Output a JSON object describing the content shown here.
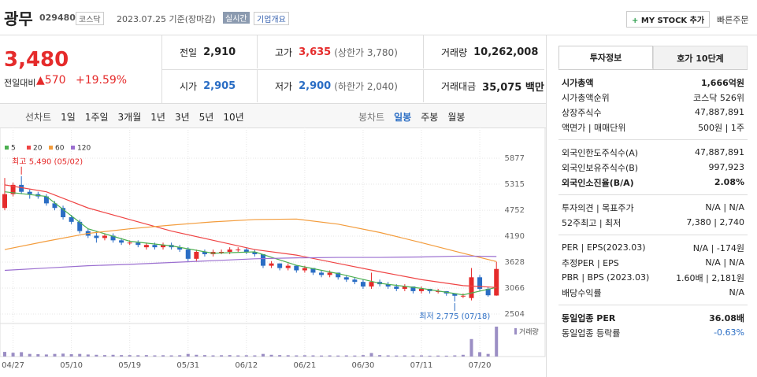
{
  "header": {
    "name": "광무",
    "code": "029480",
    "market": "코스닥",
    "date": "2023.07.25 기준(장마감)",
    "realtime": "실시간",
    "overview": "기업개요",
    "mystock": "MY STOCK 추가",
    "quick_order": "빠른주문"
  },
  "price": {
    "current": "3,480",
    "change_label": "전일대비",
    "change": "570",
    "rate": "+19.59%"
  },
  "quotes": [
    [
      {
        "label": "전일",
        "value": "2,910"
      },
      {
        "label": "고가",
        "value": "3,635",
        "note": "(상한가 3,780)"
      },
      {
        "label": "거래량",
        "value": "10,262,008"
      }
    ],
    [
      {
        "label": "시가",
        "value": "2,905"
      },
      {
        "label": "저가",
        "value": "2,900",
        "note": "(하한가 2,040)"
      },
      {
        "label": "거래대금",
        "value": "35,075 백만"
      }
    ]
  ],
  "toolbar": {
    "line_chart": "선차트",
    "periods": [
      "1일",
      "1주일",
      "3개월",
      "1년",
      "3년",
      "5년",
      "10년"
    ],
    "candle_chart": "봉차트",
    "candle_periods": [
      "일봉",
      "주봉",
      "월봉"
    ]
  },
  "chart_data": {
    "type": "candlestick",
    "categories": [
      null,
      "04/27",
      null,
      null,
      null,
      null,
      null,
      null,
      "05/10",
      null,
      null,
      null,
      null,
      null,
      null,
      "05/19",
      null,
      null,
      null,
      null,
      null,
      null,
      "05/31",
      null,
      null,
      null,
      null,
      null,
      null,
      "06/12",
      null,
      null,
      null,
      null,
      null,
      null,
      "06/21",
      null,
      null,
      null,
      null,
      null,
      null,
      "06/30",
      null,
      null,
      null,
      null,
      null,
      null,
      "07/11",
      null,
      null,
      null,
      null,
      null,
      null,
      "07/20",
      null,
      null
    ],
    "candles": [
      [
        4800,
        5450,
        4750,
        5100
      ],
      [
        5100,
        5350,
        5050,
        5300
      ],
      [
        5300,
        5490,
        5100,
        5150
      ],
      [
        5150,
        5200,
        5000,
        5100
      ],
      [
        5100,
        5150,
        5000,
        5050
      ],
      [
        5050,
        5100,
        4850,
        4900
      ],
      [
        4900,
        4950,
        4750,
        4800
      ],
      [
        4800,
        4850,
        4550,
        4600
      ],
      [
        4600,
        4650,
        4450,
        4500
      ],
      [
        4500,
        4550,
        4250,
        4300
      ],
      [
        4300,
        4350,
        4150,
        4200
      ],
      [
        4200,
        4300,
        4050,
        4150
      ],
      [
        4150,
        4250,
        4100,
        4200
      ],
      [
        4200,
        4250,
        4050,
        4100
      ],
      [
        4100,
        4150,
        4000,
        4050
      ],
      [
        4050,
        4100,
        4000,
        4050
      ],
      [
        4050,
        4100,
        3950,
        4000
      ],
      [
        3950,
        4050,
        3900,
        4000
      ],
      [
        4000,
        4050,
        3900,
        3950
      ],
      [
        3950,
        4050,
        3900,
        4000
      ],
      [
        4000,
        4050,
        3900,
        3950
      ],
      [
        3950,
        4000,
        3850,
        3900
      ],
      [
        3900,
        3950,
        3650,
        3700
      ],
      [
        3700,
        3900,
        3650,
        3850
      ],
      [
        3850,
        3900,
        3750,
        3800
      ],
      [
        3800,
        3900,
        3750,
        3850
      ],
      [
        3850,
        3900,
        3800,
        3850
      ],
      [
        3850,
        3950,
        3800,
        3900
      ],
      [
        3900,
        3950,
        3850,
        3900
      ],
      [
        3900,
        3950,
        3800,
        3850
      ],
      [
        3850,
        3900,
        3750,
        3800
      ],
      [
        3800,
        3800,
        3500,
        3550
      ],
      [
        3550,
        3650,
        3500,
        3600
      ],
      [
        3600,
        3600,
        3450,
        3500
      ],
      [
        3500,
        3600,
        3450,
        3550
      ],
      [
        3550,
        3550,
        3400,
        3450
      ],
      [
        3450,
        3550,
        3400,
        3500
      ],
      [
        3500,
        3500,
        3350,
        3400
      ],
      [
        3400,
        3450,
        3300,
        3350
      ],
      [
        3350,
        3450,
        3300,
        3400
      ],
      [
        3400,
        3400,
        3250,
        3300
      ],
      [
        3300,
        3350,
        3200,
        3250
      ],
      [
        3250,
        3300,
        3150,
        3200
      ],
      [
        3200,
        3250,
        3050,
        3100
      ],
      [
        3100,
        3400,
        3050,
        3200
      ],
      [
        3200,
        3250,
        3100,
        3150
      ],
      [
        3150,
        3200,
        3050,
        3100
      ],
      [
        3100,
        3150,
        3000,
        3050
      ],
      [
        3050,
        3150,
        3000,
        3100
      ],
      [
        3100,
        3100,
        2950,
        3000
      ],
      [
        3000,
        3100,
        2950,
        3050
      ],
      [
        3050,
        3050,
        2950,
        3000
      ],
      [
        3000,
        3050,
        2950,
        3000
      ],
      [
        3000,
        3000,
        2900,
        2950
      ],
      [
        2950,
        2950,
        2775,
        2900
      ],
      [
        2900,
        2950,
        2850,
        2900
      ],
      [
        2850,
        3500,
        2800,
        3300
      ],
      [
        3300,
        3350,
        3000,
        3050
      ],
      [
        3050,
        3100,
        2880,
        2910
      ],
      [
        2905,
        3635,
        2900,
        3480
      ]
    ],
    "series": [
      {
        "name": "5",
        "color": "#4caf50",
        "x": [
          0,
          5,
          10,
          15,
          20,
          25,
          30,
          35,
          40,
          45,
          50,
          55,
          59
        ],
        "values": [
          5150,
          5050,
          4350,
          4080,
          3980,
          3820,
          3850,
          3560,
          3380,
          3170,
          3060,
          2920,
          3080
        ]
      },
      {
        "name": "20",
        "color": "#ef4444",
        "x": [
          0,
          5,
          10,
          15,
          20,
          25,
          30,
          35,
          40,
          45,
          50,
          55,
          59
        ],
        "values": [
          5300,
          5150,
          4800,
          4550,
          4300,
          4100,
          3900,
          3780,
          3600,
          3420,
          3250,
          3120,
          3080
        ]
      },
      {
        "name": "60",
        "color": "#f39c3c",
        "x": [
          0,
          5,
          10,
          15,
          20,
          25,
          30,
          35,
          40,
          45,
          50,
          55,
          59
        ],
        "values": [
          3900,
          4080,
          4250,
          4350,
          4430,
          4500,
          4550,
          4560,
          4450,
          4270,
          4050,
          3820,
          3640
        ]
      },
      {
        "name": "120",
        "color": "#9b6fd0",
        "x": [
          0,
          5,
          10,
          15,
          20,
          25,
          30,
          35,
          40,
          45,
          50,
          55,
          59
        ],
        "values": [
          3450,
          3500,
          3550,
          3580,
          3620,
          3660,
          3700,
          3720,
          3730,
          3730,
          3740,
          3760,
          3750
        ]
      }
    ],
    "volume": [
      1600000,
      1300000,
      1500000,
      900000,
      800000,
      700000,
      900000,
      1000000,
      800000,
      900000,
      700000,
      600000,
      500000,
      600000,
      500000,
      500000,
      450000,
      500000,
      400000,
      450000,
      400000,
      450000,
      900000,
      600000,
      500000,
      400000,
      450000,
      500000,
      400000,
      450000,
      400000,
      900000,
      600000,
      500000,
      450000,
      400000,
      450000,
      400000,
      350000,
      400000,
      350000,
      400000,
      350000,
      500000,
      1200000,
      500000,
      400000,
      350000,
      400000,
      350000,
      400000,
      300000,
      350000,
      300000,
      400000,
      600000,
      6000000,
      1500000,
      900000,
      10262008
    ],
    "volume_label": "거래량",
    "vlim": [
      0,
      10800000
    ],
    "high_label": "최고 5,490 (05/02)",
    "low_label": "최저 2,775 (07/18)",
    "ylim": [
      2334,
      6133
    ],
    "yticks": [
      2504,
      3066,
      3628,
      4190,
      4752,
      5315,
      5877
    ],
    "grid": true
  },
  "panel": {
    "tabs": [
      "투자정보",
      "호가 10단계"
    ],
    "groups": [
      [
        {
          "label": "시가총액",
          "value": "1,666억원",
          "bold": true
        },
        {
          "label": "시가총액순위",
          "value": "코스닥 526위"
        },
        {
          "label": "상장주식수",
          "value": "47,887,891"
        },
        {
          "label": "액면가 | 매매단위",
          "value": "500원 | 1주"
        }
      ],
      [
        {
          "label": "외국인한도주식수(A)",
          "value": "47,887,891"
        },
        {
          "label": "외국인보유주식수(B)",
          "value": "997,923"
        },
        {
          "label": "외국인소진율(B/A)",
          "value": "2.08%",
          "bold": true
        }
      ],
      [
        {
          "label": "투자의견 | 목표주가",
          "value": "N/A | N/A"
        },
        {
          "label": "52주최고 | 최저",
          "value": "7,380 | 2,740"
        }
      ],
      [
        {
          "label": "PER | EPS(2023.03)",
          "value": "N/A | -174원"
        },
        {
          "label": "추정PER | EPS",
          "value": "N/A | N/A"
        },
        {
          "label": "PBR | BPS (2023.03)",
          "value": "1.60배 | 2,181원"
        },
        {
          "label": "배당수익률",
          "value": "N/A"
        }
      ],
      [
        {
          "label": "동일업종 PER",
          "value": "36.08배",
          "bold": true
        },
        {
          "label": "동일업종 등락률",
          "value": "-0.63%",
          "blue": true
        }
      ]
    ]
  }
}
